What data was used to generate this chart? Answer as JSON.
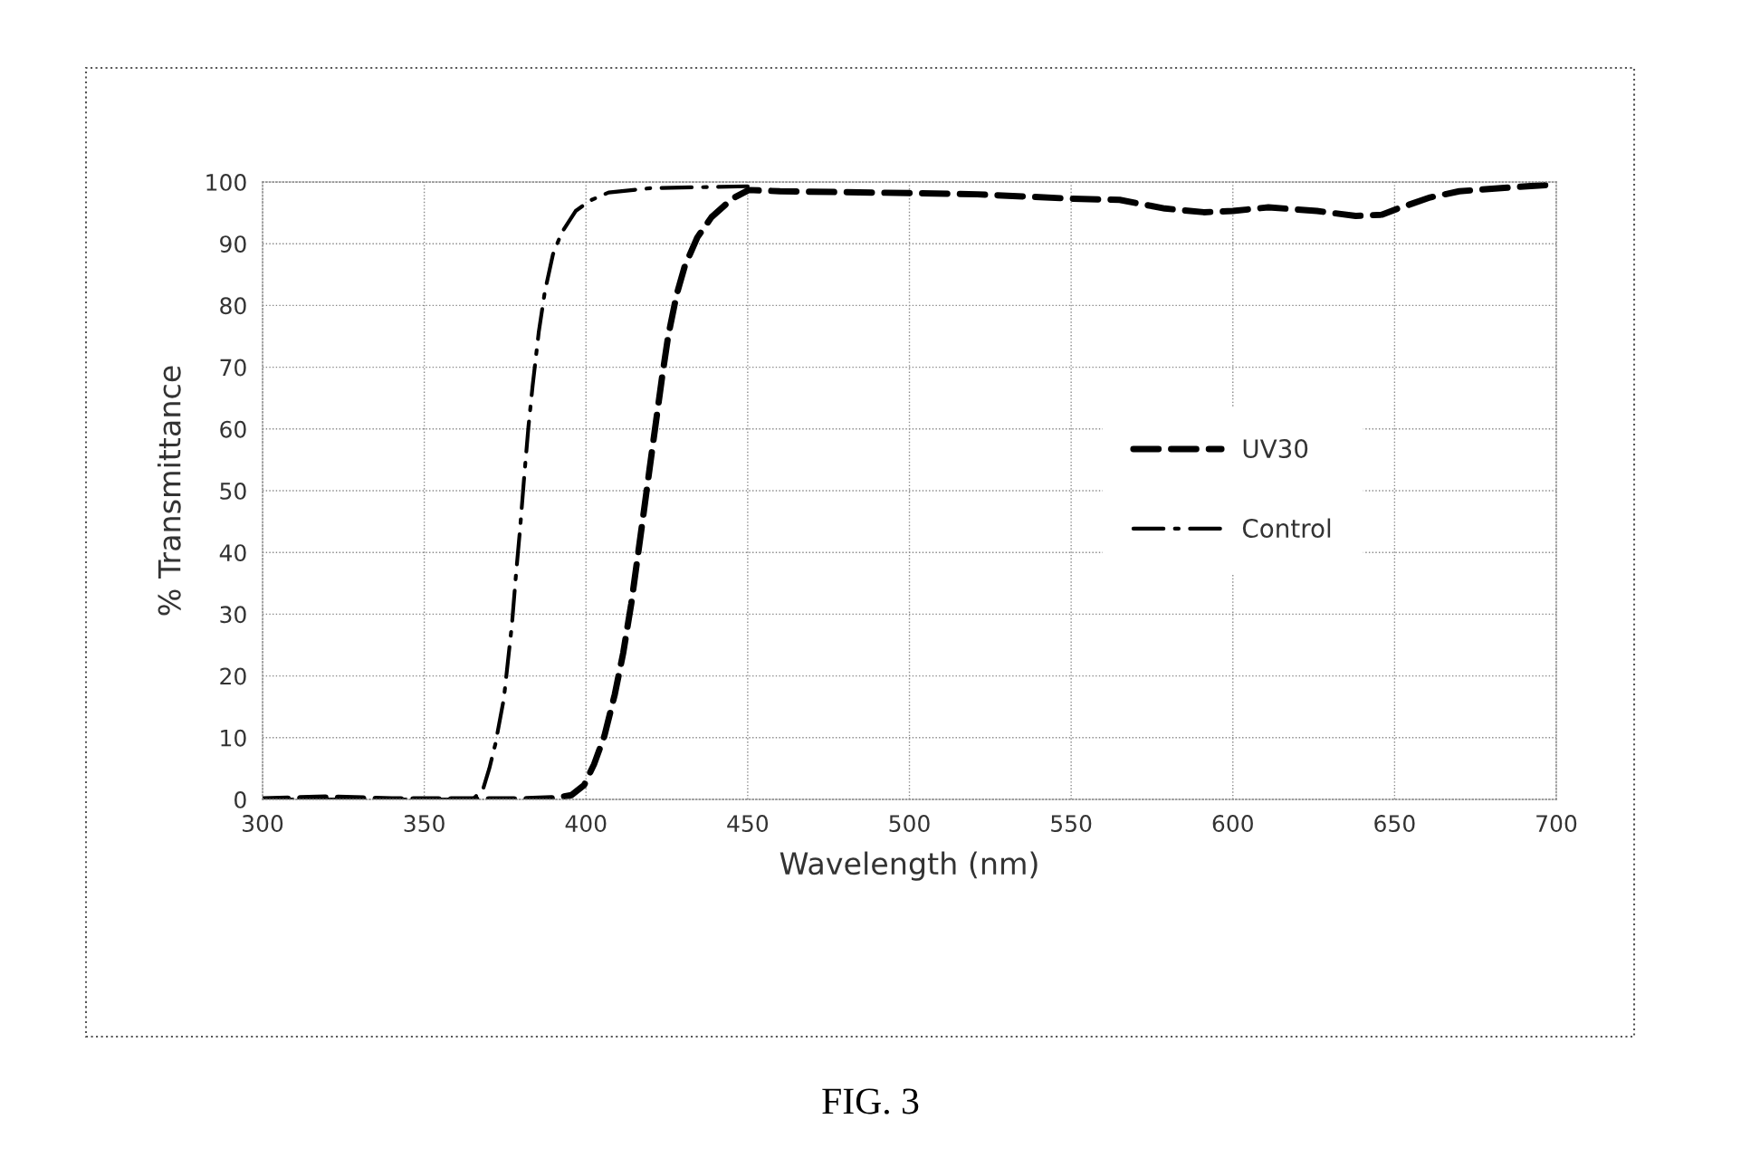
{
  "chart_data": {
    "type": "line",
    "xlabel": "Wavelength (nm)",
    "ylabel": "% Transmittance",
    "annotations": [
      "FIG. 3"
    ],
    "xlim": [
      300,
      700
    ],
    "xticks": [
      300,
      350,
      400,
      450,
      500,
      550,
      600,
      650,
      700
    ],
    "ylim": [
      0,
      100
    ],
    "yticks": [
      0,
      10,
      20,
      30,
      40,
      50,
      60,
      70,
      80,
      90,
      100
    ],
    "grid": true,
    "legend": "right",
    "marker": "none",
    "series": [
      {
        "name": "UV30",
        "color": "#000000",
        "line_style": "dashed",
        "x": [
          300,
          320,
          340,
          360,
          380,
          390,
          395.5,
          399.4,
          402.5,
          405.7,
          408.9,
          411.5,
          414,
          415.9,
          417.8,
          419.7,
          421.6,
          423.5,
          425.4,
          428,
          430.5,
          434.4,
          438.8,
          445.2,
          450.3,
          460,
          500,
          521,
          550,
          565,
          579,
          591,
          600,
          611,
          626,
          638,
          646,
          651,
          661,
          670,
          688,
          700
        ],
        "values": [
          0,
          0.3,
          0,
          0,
          0,
          0.2,
          0.7,
          2.3,
          5.7,
          10.3,
          17,
          23.7,
          31.7,
          39,
          46.3,
          53.7,
          61,
          68.3,
          75,
          81.7,
          86.3,
          91,
          94.3,
          97.3,
          98.7,
          98.5,
          98.2,
          98,
          97.3,
          97.1,
          95.7,
          95.1,
          95.3,
          95.9,
          95.3,
          94.5,
          94.7,
          95.7,
          97.5,
          98.5,
          99.2,
          99.6
        ]
      },
      {
        "name": "Control",
        "color": "#000000",
        "line_style": "dashdot",
        "x": [
          300,
          340,
          365,
          368.2,
          370.1,
          372,
          374.6,
          377.1,
          378.4,
          379.6,
          380.9,
          382.2,
          383.5,
          385.4,
          387.3,
          389.8,
          392.4,
          396.8,
          401.3,
          407,
          420,
          450
        ],
        "values": [
          0,
          0,
          0,
          1.7,
          5,
          9,
          16.3,
          28.3,
          36.7,
          43.7,
          52.3,
          60.3,
          67,
          75.7,
          82.3,
          88.3,
          91.7,
          95.3,
          97,
          98.3,
          99,
          99.3
        ]
      }
    ]
  }
}
